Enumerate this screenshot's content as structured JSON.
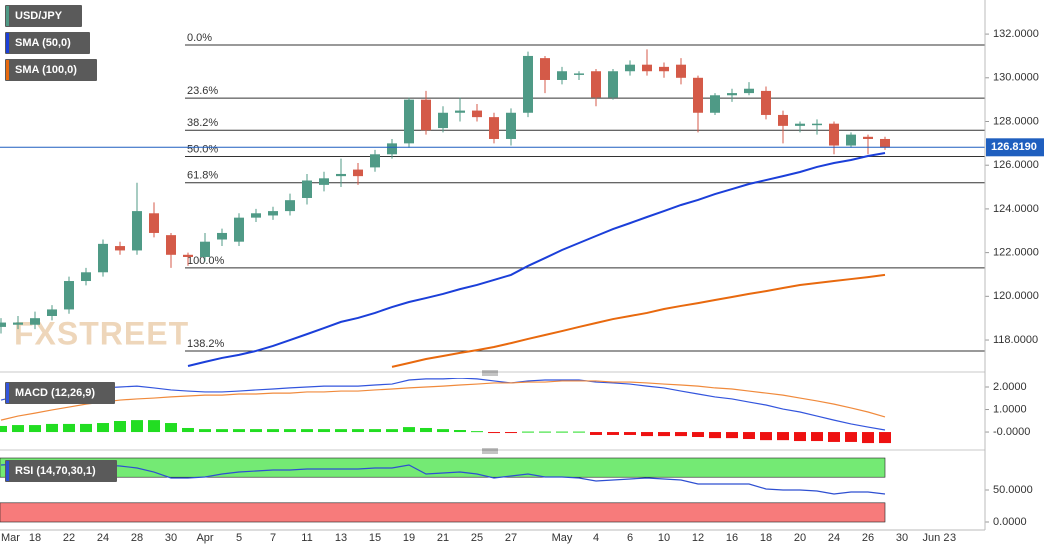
{
  "chart_data": [
    {
      "type": "candlestick",
      "name": "USD/JPY",
      "up_color": "#4f9a86",
      "down_color": "#d45a48",
      "watermark": "FXSTREET",
      "categories": [
        "Mar",
        null,
        "18",
        null,
        "22",
        null,
        "24",
        null,
        "28",
        null,
        "30",
        null,
        "Apr",
        null,
        "5",
        null,
        "7",
        null,
        "11",
        null,
        "13",
        null,
        "15",
        null,
        "19",
        null,
        "21",
        null,
        "25",
        null,
        "27",
        null,
        null,
        "May",
        null,
        "4",
        null,
        "6",
        null,
        "10",
        null,
        "12",
        null,
        "16",
        null,
        "18",
        null,
        "20",
        null,
        "24",
        null,
        "26",
        null,
        "30",
        null,
        "Jun 2",
        "3"
      ],
      "open": [
        118.6,
        118.7,
        118.7,
        119.1,
        119.4,
        120.7,
        121.1,
        122.3,
        122.1,
        123.8,
        122.8,
        121.9,
        121.8,
        122.6,
        122.5,
        123.6,
        123.7,
        123.9,
        124.5,
        125.1,
        125.5,
        125.8,
        125.9,
        126.5,
        127.0,
        129.0,
        127.7,
        128.4,
        128.5,
        128.2,
        127.2,
        128.4,
        130.9,
        129.9,
        130.15,
        130.3,
        129.1,
        130.3,
        130.6,
        130.5,
        130.6,
        130.0,
        128.4,
        129.2,
        129.3,
        129.4,
        128.3,
        127.8,
        127.9,
        127.9,
        126.9,
        127.3,
        127.2,
        null,
        null,
        null,
        null
      ],
      "high": [
        119.0,
        119.1,
        119.3,
        119.6,
        120.9,
        121.3,
        122.6,
        122.5,
        125.2,
        124.3,
        122.9,
        122.0,
        122.9,
        123.1,
        123.8,
        124.0,
        124.1,
        124.7,
        125.6,
        125.7,
        126.3,
        126.1,
        126.7,
        127.2,
        129.1,
        129.4,
        128.7,
        129.1,
        128.8,
        128.4,
        128.6,
        131.2,
        131.0,
        130.5,
        130.3,
        130.4,
        130.4,
        130.8,
        131.3,
        130.7,
        130.9,
        130.1,
        129.3,
        129.5,
        129.8,
        129.6,
        128.5,
        128.0,
        128.1,
        128.0,
        127.5,
        127.4,
        127.3,
        null,
        null,
        null,
        null
      ],
      "low": [
        118.3,
        118.5,
        118.5,
        118.9,
        119.2,
        120.5,
        120.9,
        121.9,
        121.9,
        122.7,
        121.3,
        121.4,
        121.6,
        122.3,
        122.3,
        123.4,
        123.5,
        123.7,
        124.2,
        124.8,
        125.0,
        125.1,
        125.7,
        126.3,
        126.8,
        127.4,
        127.5,
        128.0,
        128.0,
        127.0,
        126.9,
        128.2,
        129.3,
        129.7,
        129.9,
        128.7,
        129.0,
        130.1,
        130.1,
        130.0,
        129.7,
        127.5,
        128.3,
        128.9,
        129.2,
        128.1,
        127.0,
        127.5,
        127.4,
        126.5,
        126.8,
        126.5,
        126.7,
        null,
        null,
        null,
        null
      ],
      "close": [
        118.8,
        118.8,
        119.0,
        119.4,
        120.7,
        121.1,
        122.4,
        122.1,
        123.9,
        122.9,
        121.9,
        121.8,
        122.5,
        122.9,
        123.6,
        123.8,
        123.9,
        124.4,
        125.3,
        125.4,
        125.6,
        125.5,
        126.5,
        127.0,
        129.0,
        127.6,
        128.4,
        128.5,
        128.2,
        127.2,
        128.4,
        131.0,
        129.9,
        130.3,
        130.2,
        129.1,
        130.3,
        130.6,
        130.3,
        130.3,
        130.0,
        128.4,
        129.2,
        129.3,
        129.5,
        128.3,
        127.8,
        127.9,
        127.9,
        126.9,
        127.4,
        127.2,
        126.8,
        null,
        null,
        null,
        null
      ],
      "series": [
        {
          "name": "SMA (50,0)",
          "color": "#1b3fd9",
          "values": [
            null,
            null,
            null,
            null,
            null,
            null,
            null,
            null,
            null,
            null,
            null,
            116.81,
            117.0,
            117.18,
            117.32,
            117.5,
            117.73,
            118.0,
            118.27,
            118.55,
            118.83,
            119.01,
            119.24,
            119.51,
            119.74,
            119.92,
            120.11,
            120.33,
            120.52,
            120.75,
            120.98,
            121.39,
            121.75,
            122.12,
            122.44,
            122.76,
            123.08,
            123.35,
            123.63,
            123.9,
            124.18,
            124.41,
            124.68,
            124.91,
            125.14,
            125.32,
            125.5,
            125.69,
            125.92,
            126.1,
            126.24,
            126.42,
            126.56,
            null,
            null,
            null,
            null
          ]
        },
        {
          "name": "SMA (100,0)",
          "color": "#e8690e",
          "values": [
            null,
            null,
            null,
            null,
            null,
            null,
            null,
            null,
            null,
            null,
            null,
            null,
            null,
            null,
            null,
            null,
            null,
            null,
            null,
            null,
            null,
            null,
            null,
            116.77,
            116.95,
            117.13,
            117.27,
            117.41,
            117.54,
            117.68,
            117.86,
            118.05,
            118.23,
            118.41,
            118.6,
            118.78,
            118.96,
            119.1,
            119.24,
            119.42,
            119.56,
            119.69,
            119.83,
            119.97,
            120.11,
            120.24,
            120.38,
            120.52,
            120.61,
            120.7,
            120.79,
            120.88,
            120.98,
            null,
            null,
            null,
            null
          ]
        }
      ],
      "levels": [
        {
          "label": "0.0%",
          "value": 131.5
        },
        {
          "label": "23.6%",
          "value": 129.07
        },
        {
          "label": "38.2%",
          "value": 127.6
        },
        {
          "label": "50.0%",
          "value": 126.4
        },
        {
          "label": "61.8%",
          "value": 125.2
        },
        {
          "label": "100.0%",
          "value": 121.3
        },
        {
          "label": "138.2%",
          "value": 117.5
        }
      ],
      "last_price": {
        "value": 126.819,
        "label": "126.8190",
        "color": "#1f5fbf"
      },
      "ylim": [
        116.72,
        133.56
      ],
      "yticks": [
        {
          "value": 118,
          "label": "118.0000"
        },
        {
          "value": 120,
          "label": "120.0000"
        },
        {
          "value": 122,
          "label": "122.0000"
        },
        {
          "value": 124,
          "label": "124.0000"
        },
        {
          "value": 126,
          "label": "126.0000"
        },
        {
          "value": 128,
          "label": "128.0000"
        },
        {
          "value": 130,
          "label": "130.0000"
        },
        {
          "value": 132,
          "label": "132.0000"
        }
      ]
    },
    {
      "type": "macd",
      "name": "MACD (12,26,9)",
      "histogram": {
        "up_color": "#22dd22",
        "down_color": "#ee1111",
        "values": [
          0.27,
          0.31,
          0.31,
          0.36,
          0.36,
          0.36,
          0.4,
          0.49,
          0.53,
          0.53,
          0.4,
          0.18,
          0.13,
          0.13,
          0.13,
          0.13,
          0.13,
          0.13,
          0.13,
          0.13,
          0.13,
          0.13,
          0.13,
          0.13,
          0.22,
          0.18,
          0.13,
          0.09,
          0.04,
          -0.04,
          -0.04,
          0.02,
          0.02,
          0.02,
          0.02,
          -0.13,
          -0.13,
          -0.13,
          -0.18,
          -0.18,
          -0.18,
          -0.22,
          -0.27,
          -0.27,
          -0.31,
          -0.36,
          -0.36,
          -0.4,
          -0.4,
          -0.44,
          -0.44,
          -0.49,
          -0.49,
          null,
          null,
          null,
          null
        ]
      },
      "series": [
        {
          "color": "#3355dd",
          "values": [
            1.42,
            1.6,
            1.73,
            1.82,
            1.87,
            1.91,
            1.96,
            2.0,
            2.04,
            1.96,
            1.87,
            1.82,
            1.78,
            1.78,
            1.82,
            1.87,
            1.91,
            1.96,
            2.0,
            2.04,
            2.04,
            2.04,
            2.09,
            2.13,
            2.31,
            2.36,
            2.36,
            2.4,
            2.36,
            2.27,
            2.18,
            2.27,
            2.31,
            2.31,
            2.31,
            2.22,
            2.18,
            2.13,
            2.04,
            1.96,
            1.82,
            1.69,
            1.56,
            1.47,
            1.33,
            1.2,
            1.02,
            0.89,
            0.71,
            0.53,
            0.36,
            0.22,
            0.09,
            null,
            null,
            null,
            null
          ]
        },
        {
          "color": "#f08a3c",
          "values": [
            0.53,
            0.71,
            0.84,
            0.98,
            1.11,
            1.24,
            1.33,
            1.42,
            1.47,
            1.51,
            1.56,
            1.6,
            1.64,
            1.64,
            1.69,
            1.69,
            1.73,
            1.73,
            1.78,
            1.78,
            1.82,
            1.82,
            1.87,
            1.91,
            1.96,
            2.0,
            2.04,
            2.09,
            2.13,
            2.18,
            2.18,
            2.22,
            2.22,
            2.27,
            2.27,
            2.27,
            2.22,
            2.22,
            2.18,
            2.13,
            2.09,
            2.04,
            1.96,
            1.91,
            1.82,
            1.73,
            1.64,
            1.51,
            1.38,
            1.24,
            1.07,
            0.89,
            0.67,
            null,
            null,
            null,
            null
          ]
        }
      ],
      "ylim": [
        -0.62,
        2.4
      ],
      "yticks": [
        {
          "value": 0,
          "label": "-0.0000"
        },
        {
          "value": 1,
          "label": "1.0000"
        },
        {
          "value": 2,
          "label": "2.0000"
        }
      ]
    },
    {
      "type": "rsi",
      "name": "RSI (14,70,30,1)",
      "bands": [
        {
          "from": 70,
          "to": 100,
          "color": "#74ea74"
        },
        {
          "from": 0,
          "to": 30,
          "color": "#f77b7b"
        }
      ],
      "series": [
        {
          "color": "#2e4fd1",
          "values": [
            89.1,
            90.6,
            90.6,
            87.5,
            90.6,
            90.6,
            89.1,
            87.5,
            84.4,
            78.1,
            68.8,
            68.8,
            70.3,
            75,
            78.1,
            79.7,
            81.3,
            81.3,
            82.8,
            82.8,
            82.8,
            82.8,
            84.4,
            84.4,
            89.1,
            75,
            76.6,
            78.1,
            75,
            68.8,
            71.9,
            75,
            70.3,
            70.3,
            68.8,
            64.1,
            65.6,
            67.2,
            68.8,
            67.2,
            65.6,
            59.4,
            59.4,
            59.4,
            59.4,
            51.6,
            50,
            50,
            48.4,
            43.8,
            46.9,
            46.9,
            43.8,
            null,
            null,
            null,
            null
          ]
        }
      ],
      "ylim": [
        -7.8,
        104.7
      ],
      "yticks": [
        {
          "value": 0,
          "label": "0.0000"
        },
        {
          "value": 50,
          "label": "50.0000"
        }
      ]
    }
  ]
}
